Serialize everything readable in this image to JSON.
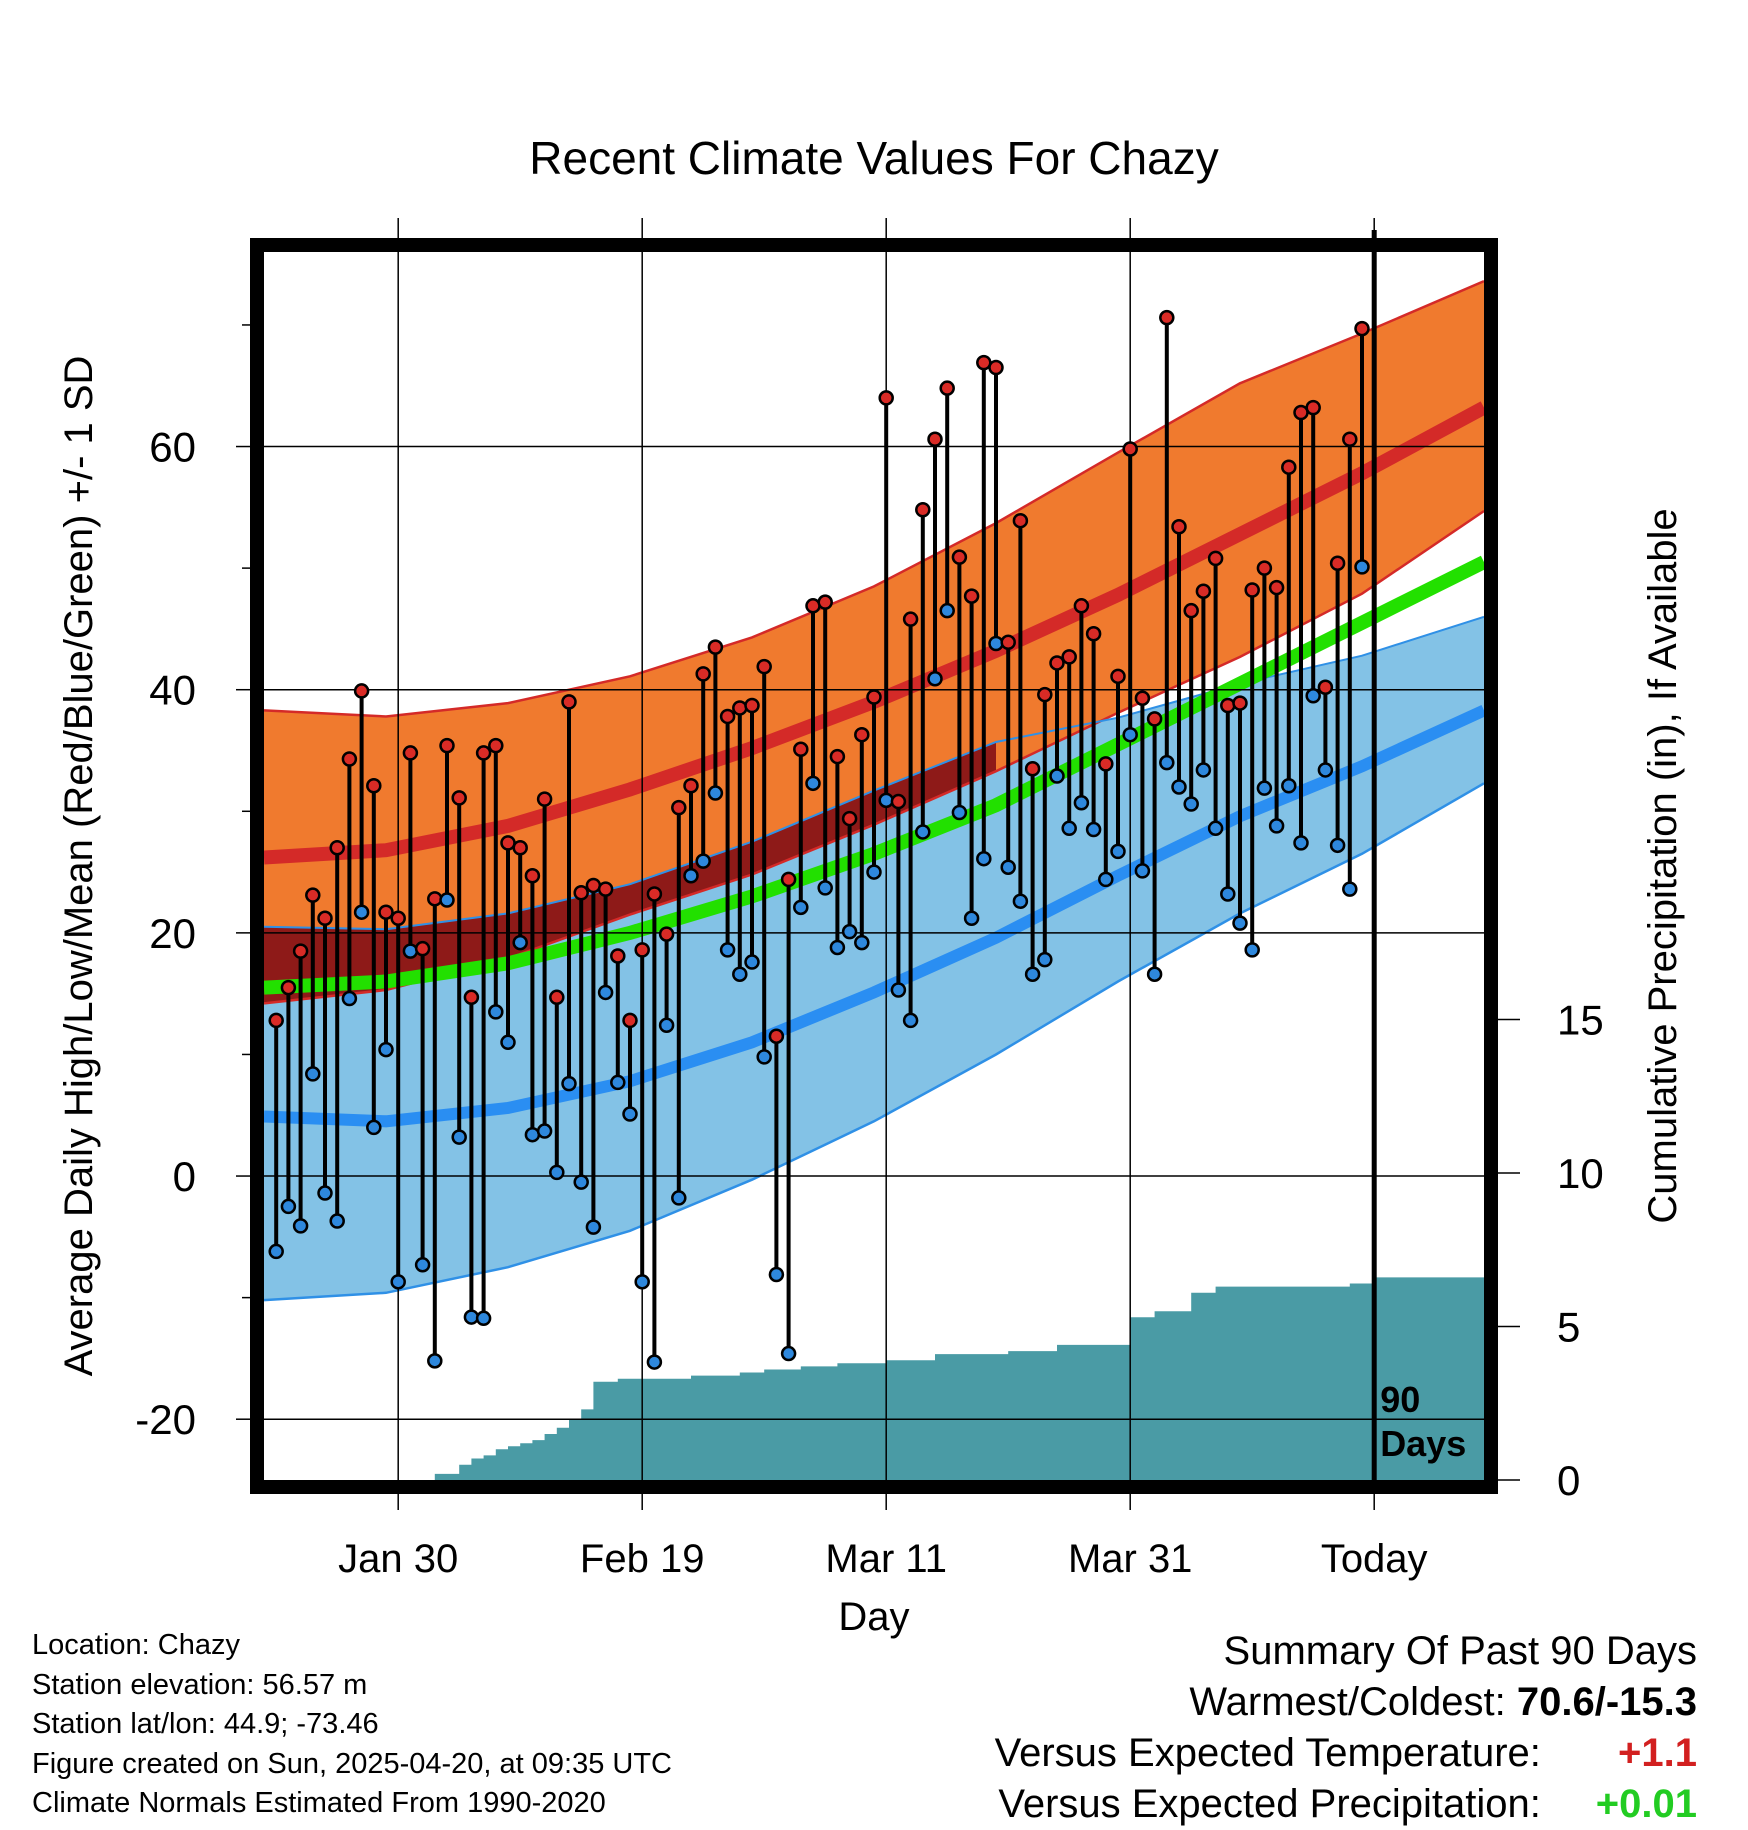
{
  "chart_data": {
    "type": "line",
    "title": "Recent Climate Values For Chazy",
    "xlabel": "Day",
    "ylabel": "Average Daily High/Low/Mean (Red/Blue/Green) +/- 1 SD",
    "ylabel_right": "Cumulative Precipitation (in), If Available",
    "x_ticks": [
      "Jan 30",
      "Feb 19",
      "Mar 11",
      "Mar 31",
      "Today"
    ],
    "x_tick_days": [
      10,
      30,
      50,
      70,
      90
    ],
    "xlim": [
      -1,
      99
    ],
    "ylim": [
      -25,
      76
    ],
    "y_ticks": [
      -20,
      0,
      20,
      40,
      60
    ],
    "y2lim": [
      0,
      40
    ],
    "y2_ticks": [
      0,
      5,
      10,
      15
    ],
    "grid": true,
    "marker_label": "90 Days",
    "normals": {
      "day": [
        -1,
        9,
        19,
        29,
        39,
        49,
        59,
        69,
        79,
        89,
        99
      ],
      "high_mean": [
        26.2,
        26.8,
        28.8,
        31.8,
        35.2,
        39.0,
        43.2,
        47.8,
        52.8,
        57.8,
        63.2
      ],
      "high_upper": [
        38.3,
        37.8,
        38.9,
        41.1,
        44.3,
        48.5,
        53.7,
        59.5,
        65.2,
        69.3,
        73.6
      ],
      "high_lower": [
        14.2,
        15.3,
        17.9,
        21.5,
        24.8,
        28.9,
        33.3,
        38.1,
        42.7,
        47.9,
        54.7
      ],
      "mean_mean": [
        15.5,
        16.0,
        17.5,
        20.0,
        23.0,
        26.5,
        30.5,
        35.5,
        40.5,
        45.5,
        50.5
      ],
      "low_mean": [
        4.9,
        4.5,
        5.6,
        7.8,
        11.0,
        15.1,
        19.6,
        24.7,
        29.6,
        33.7,
        38.3
      ],
      "low_upper": [
        20.5,
        20.3,
        21.6,
        24.0,
        27.5,
        31.7,
        35.7,
        37.7,
        40.5,
        42.8,
        46.0
      ],
      "low_lower": [
        -10.2,
        -9.6,
        -7.5,
        -4.5,
        -0.3,
        4.5,
        10.0,
        16.0,
        21.6,
        26.5,
        32.3
      ]
    },
    "series": [
      {
        "name": "High",
        "color": "#d92b26",
        "values": [
          12.8,
          15.5,
          18.5,
          23.1,
          21.2,
          27.0,
          34.3,
          39.9,
          32.1,
          21.7,
          21.2,
          34.8,
          18.7,
          22.8,
          35.4,
          31.1,
          14.7,
          34.8,
          35.4,
          27.4,
          27.0,
          24.7,
          31.0,
          14.7,
          39.0,
          23.3,
          23.9,
          23.6,
          18.1,
          12.8,
          18.6,
          23.2,
          19.9,
          30.3,
          32.1,
          41.3,
          43.5,
          37.8,
          38.5,
          38.7,
          41.9,
          11.5,
          24.4,
          35.1,
          46.9,
          47.2,
          34.5,
          29.4,
          36.3,
          39.4,
          64.0,
          30.8,
          45.8,
          54.8,
          60.6,
          64.8,
          50.9,
          47.7,
          66.9,
          66.5,
          43.9,
          53.9,
          33.5,
          39.6,
          42.2,
          42.7,
          46.9,
          44.6,
          33.9,
          41.1,
          59.8,
          39.3,
          37.6,
          70.6,
          53.4,
          46.5,
          48.1,
          50.8,
          38.7,
          38.9,
          48.2,
          50.0,
          48.4,
          58.3,
          62.8,
          63.2,
          40.2,
          50.4,
          60.6,
          69.7
        ]
      },
      {
        "name": "Low",
        "color": "#2e88dd",
        "values": [
          -6.2,
          -2.5,
          -4.1,
          8.4,
          -1.4,
          -3.7,
          14.6,
          21.7,
          4.0,
          10.4,
          -8.7,
          18.5,
          -7.3,
          -15.2,
          22.7,
          3.2,
          -11.6,
          -11.7,
          13.5,
          11.0,
          19.2,
          3.4,
          3.7,
          0.3,
          7.6,
          -0.5,
          -4.2,
          15.1,
          7.7,
          5.1,
          -8.7,
          -15.3,
          12.4,
          -1.8,
          24.7,
          25.9,
          31.5,
          18.6,
          16.6,
          17.6,
          9.8,
          -8.1,
          -14.6,
          22.1,
          32.3,
          23.7,
          18.8,
          20.1,
          19.2,
          25.0,
          30.9,
          15.3,
          12.8,
          28.3,
          40.9,
          46.5,
          29.9,
          21.2,
          26.1,
          43.8,
          25.4,
          22.6,
          16.6,
          17.8,
          32.9,
          28.6,
          30.7,
          28.5,
          24.4,
          26.7,
          36.3,
          25.1,
          16.6,
          34.0,
          32.0,
          30.6,
          33.4,
          28.6,
          23.2,
          20.8,
          18.6,
          31.9,
          28.8,
          32.1,
          27.4,
          39.5,
          33.4,
          27.2,
          23.6,
          50.1
        ]
      },
      {
        "name": "Cumulative Precipitation",
        "color": "#4a9ba5",
        "day": [
          13,
          15,
          16,
          17,
          18,
          19,
          20,
          21,
          22,
          23,
          24,
          25,
          26,
          27,
          28,
          29,
          30,
          34,
          38,
          40,
          43,
          46,
          50,
          54,
          60,
          64,
          70,
          72,
          75,
          77,
          85,
          88,
          90,
          99
        ],
        "values": [
          0.2,
          0.5,
          0.7,
          0.8,
          1.0,
          1.1,
          1.2,
          1.3,
          1.5,
          1.7,
          2.0,
          2.3,
          3.2,
          3.2,
          3.3,
          3.3,
          3.3,
          3.4,
          3.5,
          3.6,
          3.7,
          3.8,
          3.9,
          4.1,
          4.2,
          4.4,
          5.3,
          5.5,
          6.1,
          6.3,
          6.3,
          6.4,
          6.6,
          6.7
        ]
      }
    ],
    "colors": {
      "high_band": "#f07a2e",
      "high_edge": "#d42a28",
      "high_mean": "#d42a28",
      "low_band": "#83c2e6",
      "low_edge": "#2f90e6",
      "low_mean": "#2a8ef2",
      "overlap": "#8e1a18",
      "mean_line": "#22e000",
      "precip": "#4a9ba5",
      "high_marker": "#d92b26",
      "low_marker": "#2e88dd"
    }
  },
  "info": {
    "location": "Location: Chazy",
    "elevation": "Station elevation: 56.57 m",
    "latlon": "Station lat/lon: 44.9; -73.46",
    "created": "Figure created on Sun, 2025-04-20, at 09:35 UTC",
    "normals": "Climate Normals Estimated From 1990-2020"
  },
  "summary": {
    "heading": "Summary Of Past 90 Days",
    "warm_cold_label": "Warmest/Coldest:",
    "warm_cold_value": "70.6/-15.3",
    "temp_label": "Versus Expected Temperature:",
    "temp_value": "+1.1",
    "precip_label": "Versus Expected Precipitation:",
    "precip_value": "+0.01"
  }
}
